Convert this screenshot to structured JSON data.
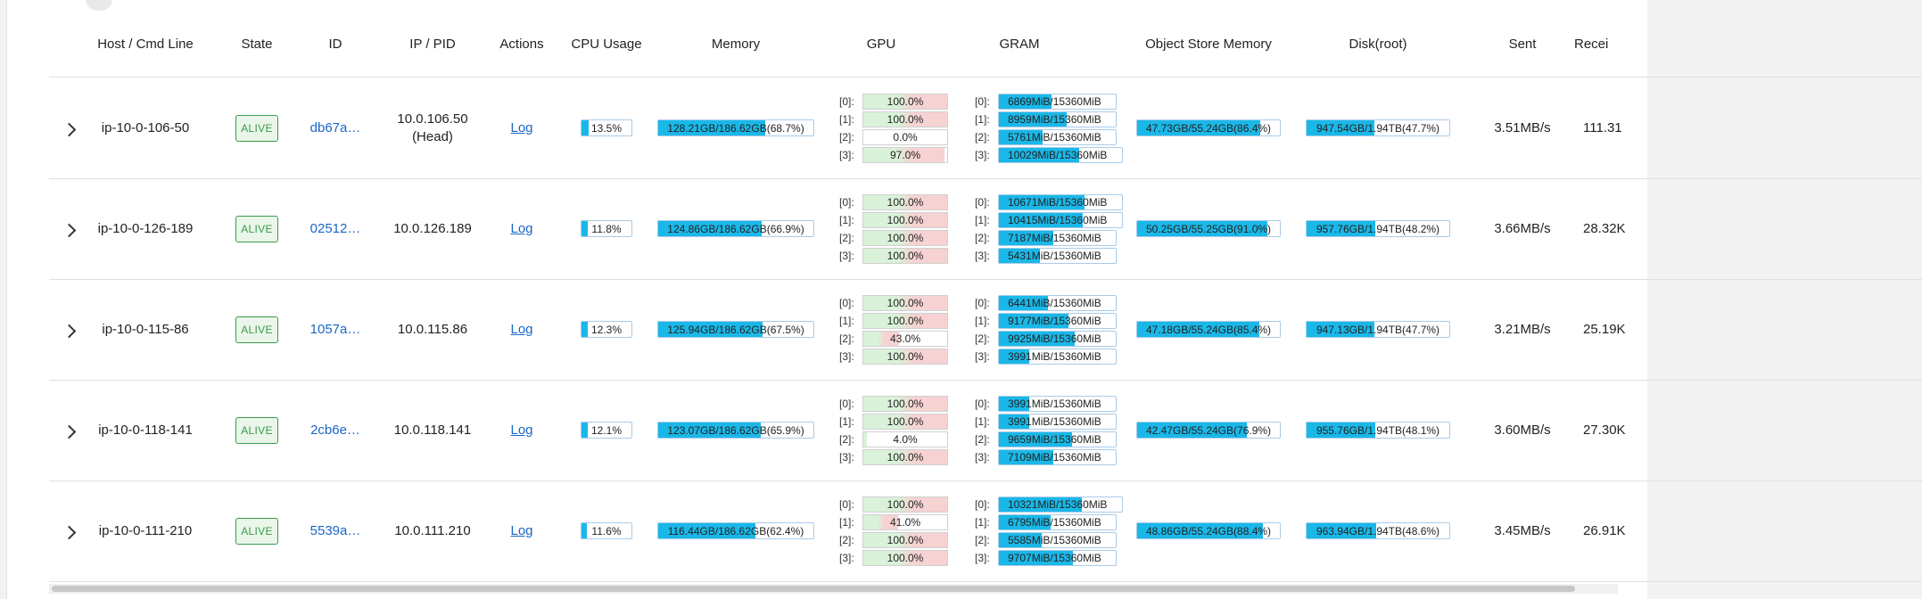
{
  "columns": {
    "host": "Host / Cmd Line",
    "state": "State",
    "id": "ID",
    "ip": "IP / PID",
    "actions": "Actions",
    "cpu": "CPU Usage",
    "memory": "Memory",
    "gpu": "GPU",
    "gram": "GRAM",
    "object_store": "Object Store Memory",
    "disk": "Disk(root)",
    "sent": "Sent",
    "received": "Recei"
  },
  "rows": [
    {
      "host": "ip-10-0-106-50",
      "state": "ALIVE",
      "id": "db67a…",
      "ip": "10.0.106.50",
      "ip_note": "(Head)",
      "action": "Log",
      "cpu": {
        "text": "13.5%",
        "pct": 13.5
      },
      "memory": {
        "text": "128.21GB/186.62GB(68.7%)",
        "pct": 68.7
      },
      "gpu": [
        {
          "idx": "[0]:",
          "text": "100.0%",
          "pct": 100.0
        },
        {
          "idx": "[1]:",
          "text": "100.0%",
          "pct": 100.0
        },
        {
          "idx": "[2]:",
          "text": "0.0%",
          "pct": 0.0
        },
        {
          "idx": "[3]:",
          "text": "97.0%",
          "pct": 97.0
        }
      ],
      "gram": [
        {
          "idx": "[0]:",
          "text": "6869MiB/15360MiB",
          "pct": 44.7
        },
        {
          "idx": "[1]:",
          "text": "8959MiB/15360MiB",
          "pct": 58.3
        },
        {
          "idx": "[2]:",
          "text": "5761MiB/15360MiB",
          "pct": 37.5
        },
        {
          "idx": "[3]:",
          "text": "10029MiB/15360MiB",
          "pct": 65.3
        }
      ],
      "object_store": {
        "text": "47.73GB/55.24GB(86.4%)",
        "pct": 86.4
      },
      "disk": {
        "text": "947.54GB/1.94TB(47.7%)",
        "pct": 47.7
      },
      "sent": "3.51MB/s",
      "received": "111.31"
    },
    {
      "host": "ip-10-0-126-189",
      "state": "ALIVE",
      "id": "02512…",
      "ip": "10.0.126.189",
      "ip_note": "",
      "action": "Log",
      "cpu": {
        "text": "11.8%",
        "pct": 11.8
      },
      "memory": {
        "text": "124.86GB/186.62GB(66.9%)",
        "pct": 66.9
      },
      "gpu": [
        {
          "idx": "[0]:",
          "text": "100.0%",
          "pct": 100.0
        },
        {
          "idx": "[1]:",
          "text": "100.0%",
          "pct": 100.0
        },
        {
          "idx": "[2]:",
          "text": "100.0%",
          "pct": 100.0
        },
        {
          "idx": "[3]:",
          "text": "100.0%",
          "pct": 100.0
        }
      ],
      "gram": [
        {
          "idx": "[0]:",
          "text": "10671MiB/15360MiB",
          "pct": 69.5
        },
        {
          "idx": "[1]:",
          "text": "10415MiB/15360MiB",
          "pct": 67.8
        },
        {
          "idx": "[2]:",
          "text": "7187MiB/15360MiB",
          "pct": 46.8
        },
        {
          "idx": "[3]:",
          "text": "5431MiB/15360MiB",
          "pct": 35.4
        }
      ],
      "object_store": {
        "text": "50.25GB/55.25GB(91.0%)",
        "pct": 91.0
      },
      "disk": {
        "text": "957.76GB/1.94TB(48.2%)",
        "pct": 48.2
      },
      "sent": "3.66MB/s",
      "received": "28.32K"
    },
    {
      "host": "ip-10-0-115-86",
      "state": "ALIVE",
      "id": "1057a…",
      "ip": "10.0.115.86",
      "ip_note": "",
      "action": "Log",
      "cpu": {
        "text": "12.3%",
        "pct": 12.3
      },
      "memory": {
        "text": "125.94GB/186.62GB(67.5%)",
        "pct": 67.5
      },
      "gpu": [
        {
          "idx": "[0]:",
          "text": "100.0%",
          "pct": 100.0
        },
        {
          "idx": "[1]:",
          "text": "100.0%",
          "pct": 100.0
        },
        {
          "idx": "[2]:",
          "text": "43.0%",
          "pct": 43.0
        },
        {
          "idx": "[3]:",
          "text": "100.0%",
          "pct": 100.0
        }
      ],
      "gram": [
        {
          "idx": "[0]:",
          "text": "6441MiB/15360MiB",
          "pct": 41.9
        },
        {
          "idx": "[1]:",
          "text": "9177MiB/15360MiB",
          "pct": 59.7
        },
        {
          "idx": "[2]:",
          "text": "9925MiB/15360MiB",
          "pct": 64.6
        },
        {
          "idx": "[3]:",
          "text": "3991MiB/15360MiB",
          "pct": 26.0
        }
      ],
      "object_store": {
        "text": "47.18GB/55.24GB(85.4%)",
        "pct": 85.4
      },
      "disk": {
        "text": "947.13GB/1.94TB(47.7%)",
        "pct": 47.7
      },
      "sent": "3.21MB/s",
      "received": "25.19K"
    },
    {
      "host": "ip-10-0-118-141",
      "state": "ALIVE",
      "id": "2cb6e…",
      "ip": "10.0.118.141",
      "ip_note": "",
      "action": "Log",
      "cpu": {
        "text": "12.1%",
        "pct": 12.1
      },
      "memory": {
        "text": "123.07GB/186.62GB(65.9%)",
        "pct": 65.9
      },
      "gpu": [
        {
          "idx": "[0]:",
          "text": "100.0%",
          "pct": 100.0
        },
        {
          "idx": "[1]:",
          "text": "100.0%",
          "pct": 100.0
        },
        {
          "idx": "[2]:",
          "text": "4.0%",
          "pct": 4.0
        },
        {
          "idx": "[3]:",
          "text": "100.0%",
          "pct": 100.0
        }
      ],
      "gram": [
        {
          "idx": "[0]:",
          "text": "3991MiB/15360MiB",
          "pct": 26.0
        },
        {
          "idx": "[1]:",
          "text": "3991MiB/15360MiB",
          "pct": 26.0
        },
        {
          "idx": "[2]:",
          "text": "9659MiB/15360MiB",
          "pct": 62.9
        },
        {
          "idx": "[3]:",
          "text": "7109MiB/15360MiB",
          "pct": 46.3
        }
      ],
      "object_store": {
        "text": "42.47GB/55.24GB(76.9%)",
        "pct": 76.9
      },
      "disk": {
        "text": "955.76GB/1.94TB(48.1%)",
        "pct": 48.1
      },
      "sent": "3.60MB/s",
      "received": "27.30K"
    },
    {
      "host": "ip-10-0-111-210",
      "state": "ALIVE",
      "id": "5539a…",
      "ip": "10.0.111.210",
      "ip_note": "",
      "action": "Log",
      "cpu": {
        "text": "11.6%",
        "pct": 11.6
      },
      "memory": {
        "text": "116.44GB/186.62GB(62.4%)",
        "pct": 62.4
      },
      "gpu": [
        {
          "idx": "[0]:",
          "text": "100.0%",
          "pct": 100.0
        },
        {
          "idx": "[1]:",
          "text": "41.0%",
          "pct": 41.0
        },
        {
          "idx": "[2]:",
          "text": "100.0%",
          "pct": 100.0
        },
        {
          "idx": "[3]:",
          "text": "100.0%",
          "pct": 100.0
        }
      ],
      "gram": [
        {
          "idx": "[0]:",
          "text": "10321MiB/15360MiB",
          "pct": 67.2
        },
        {
          "idx": "[1]:",
          "text": "6795MiB/15360MiB",
          "pct": 44.2
        },
        {
          "idx": "[2]:",
          "text": "5585MiB/15360MiB",
          "pct": 36.4
        },
        {
          "idx": "[3]:",
          "text": "9707MiB/15360MiB",
          "pct": 63.2
        }
      ],
      "object_store": {
        "text": "48.86GB/55.24GB(88.4%)",
        "pct": 88.4
      },
      "disk": {
        "text": "963.94GB/1.94TB(48.6%)",
        "pct": 48.6
      },
      "sent": "3.45MB/s",
      "received": "26.91K"
    }
  ],
  "colors": {
    "accent": "#1ab8e8",
    "alive": "#3b9a4a",
    "link": "#1a66c8",
    "gpu_green": "#d9f2d9",
    "gpu_red": "#f6d2d2"
  },
  "icons": {
    "expand": "chevron-right-icon"
  }
}
